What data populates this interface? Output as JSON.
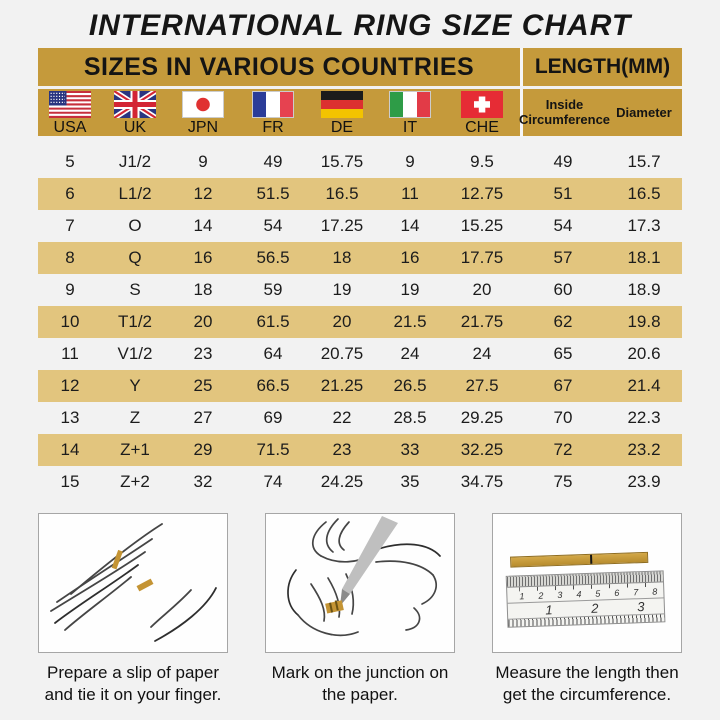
{
  "title": "INTERNATIONAL RING SIZE CHART",
  "table": {
    "header_left": "SIZES IN VARIOUS COUNTRIES",
    "header_right": "LENGTH(MM)",
    "countries": [
      {
        "code": "USA",
        "icon": "flag-usa"
      },
      {
        "code": "UK",
        "icon": "flag-uk"
      },
      {
        "code": "JPN",
        "icon": "flag-japan"
      },
      {
        "code": "FR",
        "icon": "flag-france"
      },
      {
        "code": "DE",
        "icon": "flag-germany"
      },
      {
        "code": "IT",
        "icon": "flag-italy"
      },
      {
        "code": "CHE",
        "icon": "flag-switzerland"
      }
    ],
    "length_columns": [
      "Inside Circumference",
      "Diameter"
    ],
    "rows": [
      [
        "5",
        "J1/2",
        "9",
        "49",
        "15.75",
        "9",
        "9.5",
        "49",
        "15.7"
      ],
      [
        "6",
        "L1/2",
        "12",
        "51.5",
        "16.5",
        "11",
        "12.75",
        "51",
        "16.5"
      ],
      [
        "7",
        "O",
        "14",
        "54",
        "17.25",
        "14",
        "15.25",
        "54",
        "17.3"
      ],
      [
        "8",
        "Q",
        "16",
        "56.5",
        "18",
        "16",
        "17.75",
        "57",
        "18.1"
      ],
      [
        "9",
        "S",
        "18",
        "59",
        "19",
        "19",
        "20",
        "60",
        "18.9"
      ],
      [
        "10",
        "T1/2",
        "20",
        "61.5",
        "20",
        "21.5",
        "21.75",
        "62",
        "19.8"
      ],
      [
        "11",
        "V1/2",
        "23",
        "64",
        "20.75",
        "24",
        "24",
        "65",
        "20.6"
      ],
      [
        "12",
        "Y",
        "25",
        "66.5",
        "21.25",
        "26.5",
        "27.5",
        "67",
        "21.4"
      ],
      [
        "13",
        "Z",
        "27",
        "69",
        "22",
        "28.5",
        "29.25",
        "70",
        "22.3"
      ],
      [
        "14",
        "Z+1",
        "29",
        "71.5",
        "23",
        "33",
        "32.25",
        "72",
        "23.2"
      ],
      [
        "15",
        "Z+2",
        "32",
        "74",
        "24.25",
        "35",
        "34.75",
        "75",
        "23.9"
      ]
    ]
  },
  "steps": [
    {
      "caption": "Prepare a slip of paper and tie it on your finger."
    },
    {
      "caption": "Mark on the junction on the paper."
    },
    {
      "caption": "Measure the length then get the circumference."
    }
  ],
  "ruler": {
    "cm_numbers": [
      "1",
      "2",
      "3",
      "4",
      "5",
      "6",
      "7",
      "8"
    ],
    "inch_numbers": [
      "1",
      "2",
      "3"
    ]
  },
  "colors": {
    "header_gold": "#C59A3B",
    "row_tan": "#E2C57E",
    "background": "#F2F2F2",
    "text": "#1C1C1C"
  }
}
